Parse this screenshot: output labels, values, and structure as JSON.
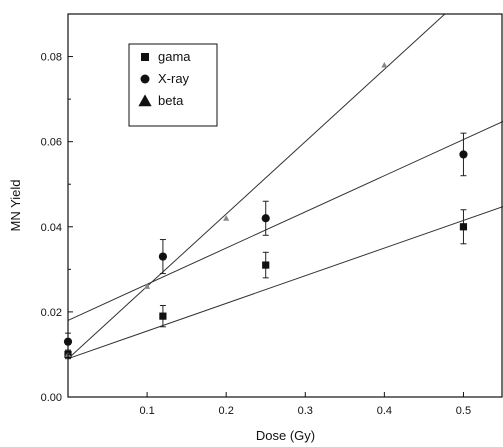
{
  "chart_data": {
    "type": "scatter",
    "title": "",
    "xlabel": "Dose (Gy)",
    "ylabel": "MN Yield",
    "xlim": [
      0,
      0.55
    ],
    "ylim": [
      0,
      0.09
    ],
    "xticks": [
      0.1,
      0.2,
      0.3,
      0.4,
      0.5
    ],
    "xtick_labels": [
      "0.1",
      "0.2",
      "0.3",
      "0.4",
      "0.5"
    ],
    "yticks": [
      0.0,
      0.02,
      0.04,
      0.06,
      0.08
    ],
    "ytick_labels": [
      "0.00",
      "0.02",
      "0.04",
      "0.06",
      "0.08"
    ],
    "grid": false,
    "legend_position": "top-left",
    "series": [
      {
        "name": "gama",
        "marker": "square",
        "color": "#111111",
        "points": [
          {
            "x": 0.0,
            "y": 0.01,
            "err": 0.001
          },
          {
            "x": 0.12,
            "y": 0.019,
            "err": 0.0025
          },
          {
            "x": 0.25,
            "y": 0.031,
            "err": 0.003
          },
          {
            "x": 0.5,
            "y": 0.04,
            "err": 0.004
          }
        ],
        "fit": {
          "slope": 0.065,
          "intercept": 0.009
        }
      },
      {
        "name": "X-ray",
        "marker": "circle",
        "color": "#111111",
        "points": [
          {
            "x": 0.0,
            "y": 0.013,
            "err": 0.002
          },
          {
            "x": 0.12,
            "y": 0.033,
            "err": 0.004
          },
          {
            "x": 0.25,
            "y": 0.042,
            "err": 0.004
          },
          {
            "x": 0.5,
            "y": 0.057,
            "err": 0.005
          }
        ],
        "fit": {
          "slope": 0.085,
          "intercept": 0.018
        }
      },
      {
        "name": "beta",
        "marker": "triangle",
        "color": "#888888",
        "points": [
          {
            "x": 0.0,
            "y": 0.01,
            "err": 0
          },
          {
            "x": 0.1,
            "y": 0.026,
            "err": 0
          },
          {
            "x": 0.2,
            "y": 0.042,
            "err": 0
          },
          {
            "x": 0.4,
            "y": 0.078,
            "err": 0
          }
        ],
        "fit": {
          "slope": 0.17,
          "intercept": 0.009
        }
      }
    ]
  }
}
